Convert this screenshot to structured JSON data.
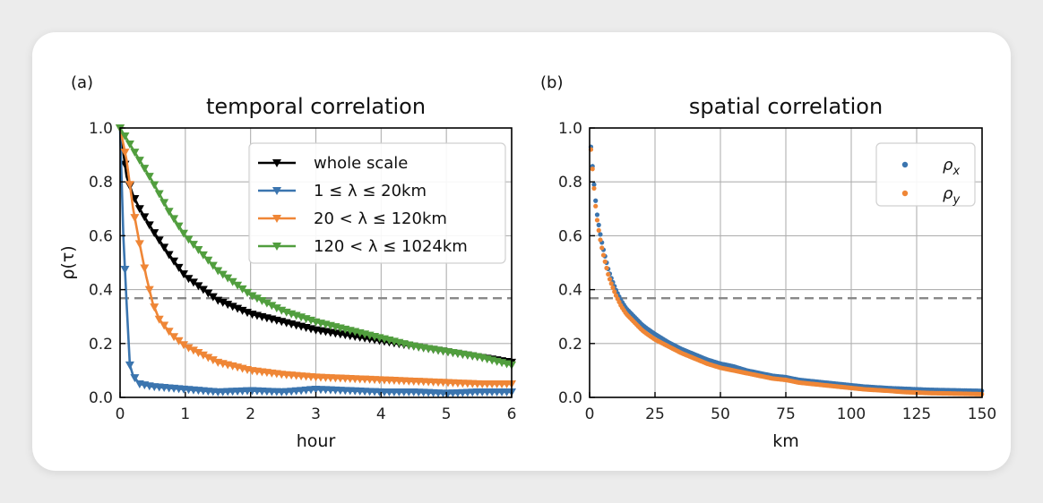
{
  "chart_data": [
    {
      "type": "line",
      "panel_label": "(a)",
      "title": "temporal correlation",
      "xlabel": "hour",
      "ylabel": "ρ(τ)",
      "xlim": [
        0,
        6
      ],
      "ylim": [
        0,
        1
      ],
      "xticks": [
        "0",
        "1",
        "2",
        "3",
        "4",
        "5",
        "6"
      ],
      "yticks": [
        "0.0",
        "0.2",
        "0.4",
        "0.6",
        "0.8",
        "1.0"
      ],
      "grid": true,
      "legend_position": "top-right",
      "reference_line": {
        "y": 0.368,
        "style": "dashed",
        "color": "#888888"
      },
      "marker": "downward-triangle",
      "series": [
        {
          "name": "whole scale",
          "color": "#000000",
          "x": [
            0,
            0.1,
            0.2,
            0.3,
            0.5,
            0.75,
            1,
            1.5,
            2,
            2.5,
            3,
            3.5,
            4,
            4.5,
            5,
            5.5,
            6
          ],
          "y": [
            1.0,
            0.82,
            0.75,
            0.7,
            0.62,
            0.53,
            0.45,
            0.36,
            0.31,
            0.28,
            0.25,
            0.23,
            0.21,
            0.19,
            0.17,
            0.15,
            0.13
          ]
        },
        {
          "name": "1 ≤ λ ≤ 20km",
          "color": "#3b75af",
          "x": [
            0,
            0.05,
            0.1,
            0.15,
            0.2,
            0.3,
            0.5,
            1,
            1.5,
            2,
            2.5,
            3,
            3.5,
            4,
            4.5,
            5,
            5.5,
            6
          ],
          "y": [
            1.0,
            0.6,
            0.35,
            0.12,
            0.08,
            0.05,
            0.04,
            0.03,
            0.02,
            0.025,
            0.02,
            0.03,
            0.025,
            0.02,
            0.02,
            0.015,
            0.02,
            0.02
          ]
        },
        {
          "name": "20 < λ ≤ 120km",
          "color": "#ef8636",
          "x": [
            0,
            0.1,
            0.2,
            0.3,
            0.4,
            0.5,
            0.6,
            0.8,
            1,
            1.5,
            2,
            2.5,
            3,
            3.5,
            4,
            4.5,
            5,
            5.5,
            6
          ],
          "y": [
            1.0,
            0.88,
            0.7,
            0.57,
            0.45,
            0.35,
            0.29,
            0.23,
            0.19,
            0.13,
            0.1,
            0.085,
            0.075,
            0.07,
            0.065,
            0.06,
            0.055,
            0.05,
            0.05
          ]
        },
        {
          "name": "120 < λ ≤ 1024km",
          "color": "#519e3e",
          "x": [
            0,
            0.25,
            0.5,
            0.75,
            1,
            1.5,
            2,
            2.5,
            3,
            3.5,
            4,
            4.5,
            5,
            5.5,
            6
          ],
          "y": [
            1.0,
            0.9,
            0.8,
            0.69,
            0.6,
            0.47,
            0.38,
            0.32,
            0.28,
            0.25,
            0.22,
            0.19,
            0.17,
            0.15,
            0.12
          ]
        }
      ]
    },
    {
      "type": "scatter",
      "panel_label": "(b)",
      "title": "spatial correlation",
      "xlabel": "km",
      "ylabel": "",
      "xlim": [
        0,
        150
      ],
      "ylim": [
        0,
        1
      ],
      "xticks": [
        "0",
        "25",
        "50",
        "75",
        "100",
        "125",
        "150"
      ],
      "yticks": [
        "0.0",
        "0.2",
        "0.4",
        "0.6",
        "0.8",
        "1.0"
      ],
      "grid": true,
      "legend_position": "top-right",
      "reference_line": {
        "y": 0.368,
        "style": "dashed",
        "color": "#888888"
      },
      "marker": "dot",
      "series": [
        {
          "name": "ρx",
          "label_base": "ρ",
          "label_sub": "x",
          "color": "#3b75af",
          "x": [
            0.5,
            1,
            1.5,
            2,
            2.5,
            3,
            4,
            5,
            6,
            7,
            8,
            10,
            12,
            14,
            16,
            18,
            20,
            22,
            25,
            30,
            35,
            40,
            45,
            50,
            55,
            60,
            65,
            70,
            75,
            80,
            85,
            90,
            95,
            100,
            105,
            110,
            115,
            120,
            125,
            130,
            135,
            140,
            145,
            150
          ],
          "y": [
            0.93,
            0.87,
            0.81,
            0.76,
            0.71,
            0.67,
            0.61,
            0.56,
            0.52,
            0.48,
            0.45,
            0.4,
            0.36,
            0.33,
            0.31,
            0.29,
            0.27,
            0.255,
            0.235,
            0.205,
            0.18,
            0.16,
            0.14,
            0.125,
            0.115,
            0.1,
            0.09,
            0.08,
            0.075,
            0.065,
            0.06,
            0.055,
            0.05,
            0.045,
            0.04,
            0.037,
            0.034,
            0.032,
            0.03,
            0.028,
            0.027,
            0.026,
            0.025,
            0.024
          ]
        },
        {
          "name": "ρy",
          "label_base": "ρ",
          "label_sub": "y",
          "color": "#ef8636",
          "x": [
            0.5,
            1,
            1.5,
            2,
            2.5,
            3,
            4,
            5,
            6,
            7,
            8,
            10,
            12,
            14,
            16,
            18,
            20,
            22,
            25,
            30,
            35,
            40,
            45,
            50,
            55,
            60,
            65,
            70,
            75,
            80,
            85,
            90,
            95,
            100,
            105,
            110,
            115,
            120,
            125,
            130,
            135,
            140,
            145,
            150
          ],
          "y": [
            0.92,
            0.86,
            0.8,
            0.74,
            0.69,
            0.65,
            0.59,
            0.54,
            0.5,
            0.46,
            0.43,
            0.38,
            0.34,
            0.31,
            0.29,
            0.27,
            0.25,
            0.235,
            0.215,
            0.19,
            0.165,
            0.145,
            0.125,
            0.11,
            0.1,
            0.09,
            0.08,
            0.07,
            0.065,
            0.055,
            0.05,
            0.045,
            0.04,
            0.035,
            0.03,
            0.027,
            0.024,
            0.02,
            0.018,
            0.016,
            0.015,
            0.014,
            0.013,
            0.012
          ]
        }
      ]
    }
  ]
}
